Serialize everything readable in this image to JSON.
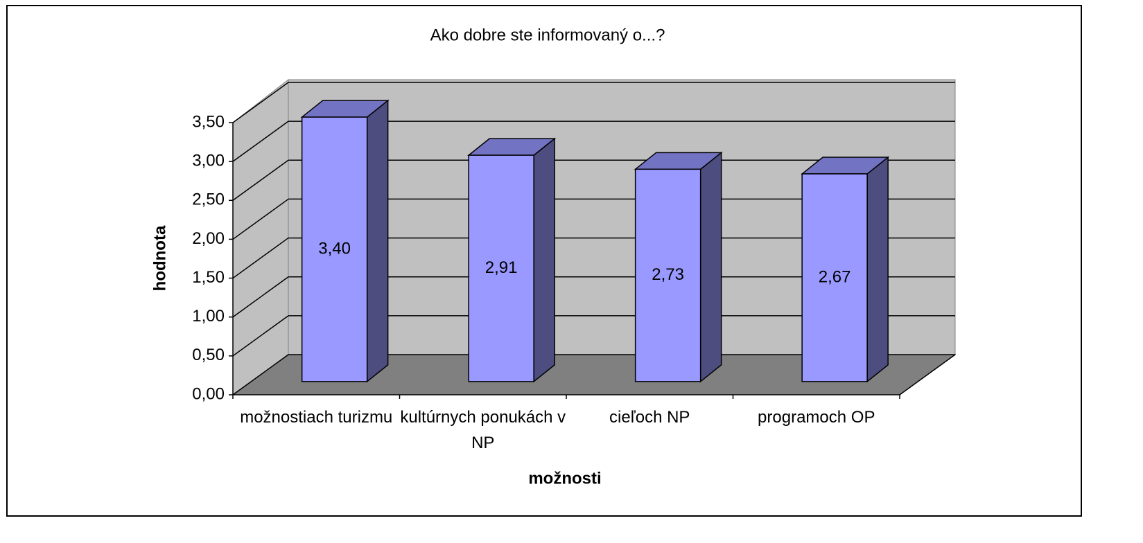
{
  "chart_data": {
    "type": "bar3d",
    "title": "Ako dobre ste informovaný o...?",
    "x_label": "možnosti",
    "y_label": "hodnota",
    "categories": [
      "možnostiach turizmu",
      "kultúrnych ponukách v NP",
      "cieľoch NP",
      "programoch OP"
    ],
    "values": [
      3.4,
      2.91,
      2.73,
      2.67
    ],
    "value_labels": [
      "3,40",
      "2,91",
      "2,73",
      "2,67"
    ],
    "colors": {
      "front": "#9999ff",
      "side": "#4d4d80",
      "top": "#7373c4"
    },
    "ylim": [
      0,
      3.5
    ],
    "yticks": [
      {
        "value": 0,
        "label": "0,00"
      },
      {
        "value": 0.5,
        "label": "0,50"
      },
      {
        "value": 1,
        "label": "1,00"
      },
      {
        "value": 1.5,
        "label": "1,50"
      },
      {
        "value": 2,
        "label": "2,00"
      },
      {
        "value": 2.5,
        "label": "2,50"
      },
      {
        "value": 3,
        "label": "3,00"
      },
      {
        "value": 3.5,
        "label": "3,50"
      }
    ],
    "grid": true
  }
}
